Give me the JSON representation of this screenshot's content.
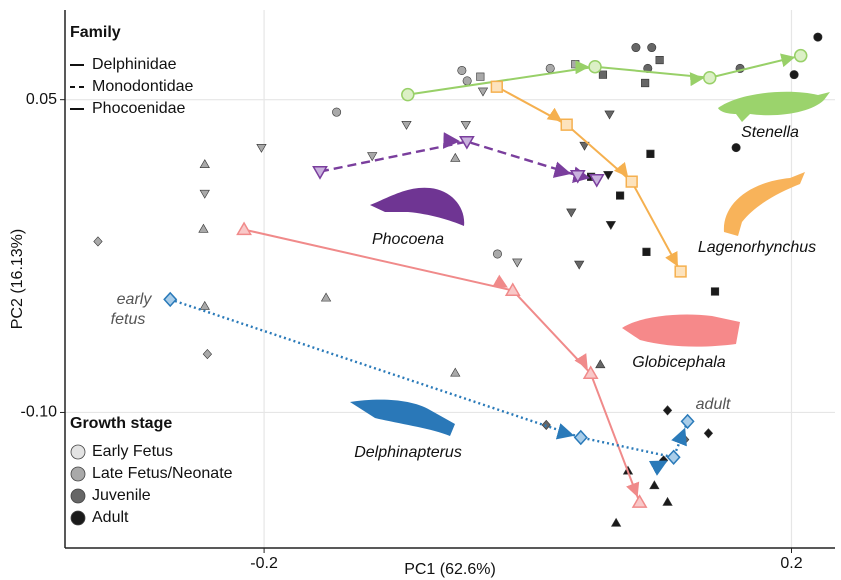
{
  "chart_data": {
    "type": "scatter",
    "x_label": "PC1 (62.6%)",
    "y_label": "PC2 (16.13%)",
    "xlim": [
      -0.351,
      0.233
    ],
    "ylim": [
      -0.165,
      0.093
    ],
    "xticks": [
      -0.2,
      0.2
    ],
    "yticks": [
      0.05,
      {
        "value": -0.1,
        "label": "-0.10"
      }
    ],
    "grid": true,
    "family_legend": {
      "title": "Family",
      "entries": [
        {
          "name": "Delphinidae",
          "dash": "solid"
        },
        {
          "name": "Monodontidae",
          "dash": "dashed"
        },
        {
          "name": "Phocoenidae",
          "dash": "solid"
        }
      ]
    },
    "stage_legend": {
      "title": "Growth stage",
      "entries": [
        {
          "name": "Early Fetus",
          "color": "#e3e3e3"
        },
        {
          "name": "Late Fetus/Neonate",
          "color": "#a9a9a9"
        },
        {
          "name": "Juvenile",
          "color": "#666666"
        },
        {
          "name": "Adult",
          "color": "#1a1a1a"
        }
      ]
    },
    "annotations": {
      "early": [
        "early",
        "fetus"
      ],
      "adult": "adult"
    },
    "series": [
      {
        "name": "Stenella",
        "color": "#98d068",
        "fill": "#dcf0c6",
        "shape": "circle",
        "dash": "solid",
        "x": [
          -0.091,
          0.051,
          0.138,
          0.207
        ],
        "y": [
          0.0524,
          0.0658,
          0.0605,
          0.0711
        ]
      },
      {
        "name": "Lagenorhynchus",
        "color": "#f5b04f",
        "fill": "#fde3bd",
        "shape": "square",
        "dash": "solid",
        "x": [
          -0.0235,
          0.0295,
          0.0788,
          0.1159
        ],
        "y": [
          0.0562,
          0.038,
          0.0107,
          -0.0324
        ]
      },
      {
        "name": "Phocoena",
        "color": "#7a3e9d",
        "fill": "#c9b2dd",
        "shape": "triangle-down",
        "dash": "dashed",
        "x": [
          -0.1576,
          -0.0462,
          0.0379,
          0.0523
        ],
        "y": [
          0.0155,
          0.0299,
          0.0136,
          0.0117
        ]
      },
      {
        "name": "Globicephala",
        "color": "#f08a8a",
        "fill": "#f9c8c8",
        "shape": "triangle",
        "dash": "solid",
        "x": [
          -0.2152,
          -0.0114,
          0.0477,
          0.0848
        ],
        "y": [
          -0.0123,
          -0.0415,
          -0.0813,
          -0.1431
        ]
      },
      {
        "name": "Delphinapterus",
        "color": "#2a7ab9",
        "fill": "#a9cde9",
        "shape": "diamond",
        "dash": "dotted",
        "x": [
          -0.2712,
          0.0402,
          0.1106,
          0.1212
        ],
        "y": [
          -0.0458,
          -0.112,
          -0.1215,
          -0.1043
        ]
      }
    ],
    "background_points": {
      "x": [
        -0.145,
        -0.05,
        -0.046,
        -0.036,
        -0.034,
        0.017,
        0.036,
        0.082,
        0.094,
        0.1,
        0.091,
        0.057,
        0.089,
        0.161,
        0.202,
        0.22,
        0.062,
        0.043,
        0.093,
        0.158,
        -0.047,
        -0.118,
        -0.092,
        -0.055,
        -0.202,
        -0.245,
        -0.245,
        -0.246,
        -0.326,
        -0.245,
        -0.243,
        -0.153,
        -0.055,
        -0.023,
        -0.008,
        0.039,
        0.033,
        0.048,
        0.061,
        0.07,
        0.063,
        0.09,
        0.142,
        0.055,
        0.014,
        0.119,
        0.106,
        0.137,
        0.103,
        0.076,
        0.096,
        0.106,
        0.067
      ],
      "y": [
        0.044,
        0.064,
        0.059,
        0.061,
        0.054,
        0.065,
        0.067,
        0.075,
        0.075,
        0.069,
        0.065,
        0.062,
        0.058,
        0.065,
        0.062,
        0.08,
        0.043,
        0.028,
        0.024,
        0.027,
        0.038,
        0.023,
        0.038,
        0.022,
        0.027,
        0.019,
        0.005,
        -0.012,
        -0.018,
        -0.049,
        -0.072,
        -0.045,
        -0.081,
        -0.024,
        -0.028,
        -0.029,
        -0.004,
        0.013,
        0.014,
        0.004,
        -0.01,
        -0.023,
        -0.042,
        -0.077,
        -0.106,
        -0.113,
        -0.099,
        -0.11,
        -0.123,
        -0.128,
        -0.135,
        -0.143,
        -0.153
      ],
      "shape": [
        "circle",
        "circle",
        "circle",
        "square",
        "triangle-down",
        "circle",
        "square",
        "circle",
        "circle",
        "square",
        "circle",
        "square",
        "square",
        "circle",
        "circle",
        "circle",
        "triangle-down",
        "triangle-down",
        "square",
        "circle",
        "triangle-down",
        "triangle-down",
        "triangle-down",
        "triangle",
        "triangle-down",
        "triangle",
        "triangle-down",
        "triangle",
        "diamond",
        "triangle",
        "diamond",
        "triangle",
        "triangle",
        "circle",
        "triangle-down",
        "triangle-down",
        "triangle-down",
        "square",
        "triangle-down",
        "square",
        "triangle-down",
        "square",
        "square",
        "triangle",
        "diamond",
        "diamond",
        "diamond",
        "diamond",
        "diamond",
        "triangle",
        "triangle",
        "triangle",
        "triangle"
      ],
      "stage": [
        1,
        1,
        1,
        1,
        1,
        1,
        1,
        2,
        2,
        2,
        2,
        2,
        2,
        2,
        3,
        3,
        2,
        2,
        3,
        3,
        1,
        1,
        1,
        1,
        1,
        1,
        1,
        1,
        1,
        1,
        1,
        1,
        1,
        1,
        1,
        2,
        2,
        3,
        3,
        3,
        3,
        3,
        3,
        2,
        2,
        2,
        3,
        3,
        3,
        3,
        3,
        3,
        3
      ]
    }
  }
}
